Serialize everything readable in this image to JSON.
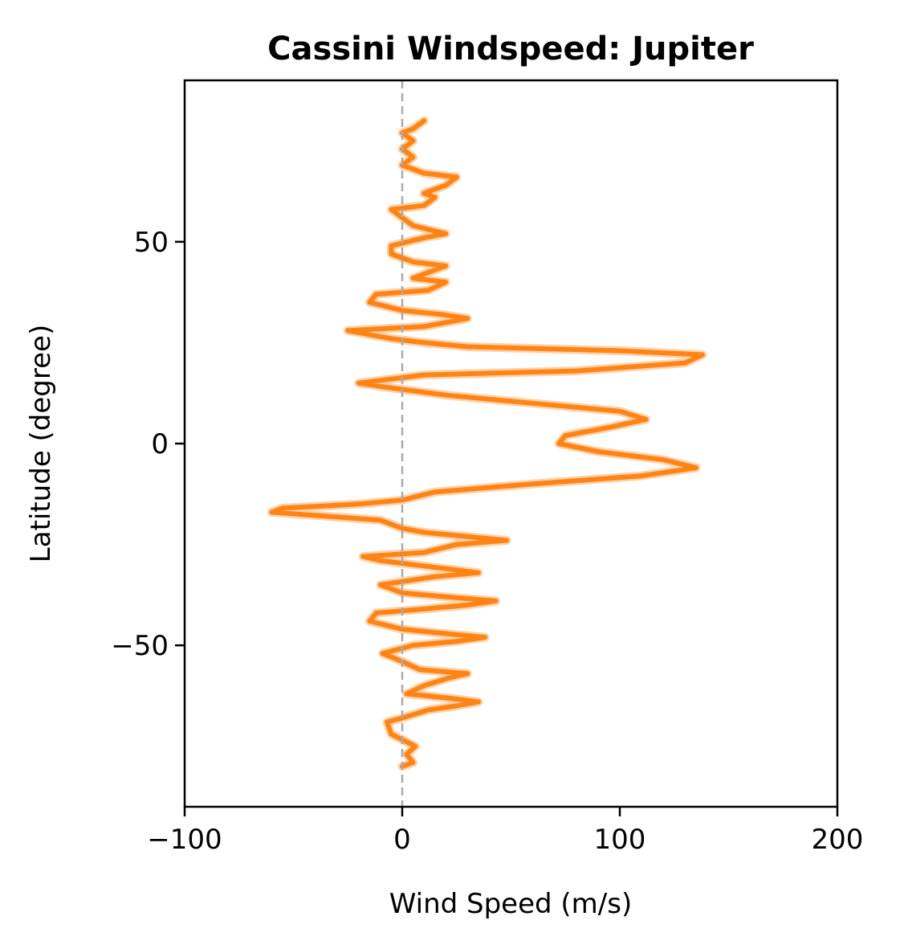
{
  "chart_data": {
    "type": "line",
    "title": "Cassini Windspeed: Jupiter",
    "xlabel": "Wind Speed (m/s)",
    "ylabel": "Latitude (degree)",
    "xlim": [
      -100,
      200
    ],
    "ylim": [
      -90,
      90
    ],
    "xticks": [
      {
        "value": -100,
        "label": "−100"
      },
      {
        "value": 0,
        "label": "0"
      },
      {
        "value": 100,
        "label": "100"
      },
      {
        "value": 200,
        "label": "200"
      }
    ],
    "yticks": [
      {
        "value": 50,
        "label": "50"
      },
      {
        "value": 0,
        "label": "0"
      },
      {
        "value": -50,
        "label": "−50"
      }
    ],
    "grid": false,
    "reference_line": {
      "x": 0,
      "style": "dashed",
      "color": "#aaaaaa"
    },
    "series": [
      {
        "color": "#ff7f0e",
        "points": [
          [
            0,
            -80
          ],
          [
            5,
            -79
          ],
          [
            2,
            -77
          ],
          [
            6,
            -75
          ],
          [
            -5,
            -72
          ],
          [
            -7,
            -69
          ],
          [
            0,
            -68
          ],
          [
            12,
            -66
          ],
          [
            25,
            -65
          ],
          [
            35,
            -64
          ],
          [
            20,
            -63
          ],
          [
            2,
            -62
          ],
          [
            10,
            -60
          ],
          [
            22,
            -58
          ],
          [
            30,
            -57
          ],
          [
            8,
            -56
          ],
          [
            0,
            -54
          ],
          [
            -9,
            -52
          ],
          [
            5,
            -50
          ],
          [
            25,
            -49
          ],
          [
            38,
            -48
          ],
          [
            18,
            -47
          ],
          [
            0,
            -46
          ],
          [
            -15,
            -44
          ],
          [
            -12,
            -42
          ],
          [
            10,
            -41
          ],
          [
            30,
            -40
          ],
          [
            43,
            -39
          ],
          [
            20,
            -38
          ],
          [
            0,
            -37
          ],
          [
            -10,
            -35
          ],
          [
            15,
            -33
          ],
          [
            35,
            -32
          ],
          [
            20,
            -31
          ],
          [
            -10,
            -29
          ],
          [
            -18,
            -28
          ],
          [
            10,
            -27
          ],
          [
            25,
            -25
          ],
          [
            48,
            -24
          ],
          [
            10,
            -22
          ],
          [
            0,
            -21
          ],
          [
            -10,
            -19
          ],
          [
            -60,
            -17
          ],
          [
            -55,
            -16
          ],
          [
            -20,
            -15
          ],
          [
            0,
            -14
          ],
          [
            15,
            -12
          ],
          [
            60,
            -10
          ],
          [
            110,
            -8
          ],
          [
            135,
            -6
          ],
          [
            120,
            -4
          ],
          [
            90,
            -2
          ],
          [
            72,
            0
          ],
          [
            75,
            2
          ],
          [
            95,
            4
          ],
          [
            112,
            6
          ],
          [
            100,
            8
          ],
          [
            60,
            10
          ],
          [
            20,
            12
          ],
          [
            -8,
            14
          ],
          [
            -20,
            15
          ],
          [
            10,
            17
          ],
          [
            80,
            18
          ],
          [
            130,
            20
          ],
          [
            138,
            22
          ],
          [
            100,
            23
          ],
          [
            30,
            24
          ],
          [
            10,
            25
          ],
          [
            -5,
            26
          ],
          [
            -25,
            28
          ],
          [
            10,
            29
          ],
          [
            30,
            31
          ],
          [
            18,
            32
          ],
          [
            0,
            33
          ],
          [
            -15,
            35
          ],
          [
            -12,
            37
          ],
          [
            12,
            38
          ],
          [
            20,
            40
          ],
          [
            5,
            41
          ],
          [
            15,
            43
          ],
          [
            20,
            44
          ],
          [
            5,
            45
          ],
          [
            -5,
            47
          ],
          [
            -5,
            49
          ],
          [
            10,
            51
          ],
          [
            20,
            52
          ],
          [
            5,
            54
          ],
          [
            0,
            56
          ],
          [
            -5,
            58
          ],
          [
            10,
            59
          ],
          [
            15,
            61
          ],
          [
            10,
            62
          ],
          [
            20,
            64
          ],
          [
            25,
            66
          ],
          [
            10,
            67
          ],
          [
            0,
            69
          ],
          [
            5,
            71
          ],
          [
            0,
            73
          ],
          [
            5,
            75
          ],
          [
            0,
            77
          ],
          [
            5,
            78
          ],
          [
            10,
            80
          ]
        ]
      }
    ]
  }
}
